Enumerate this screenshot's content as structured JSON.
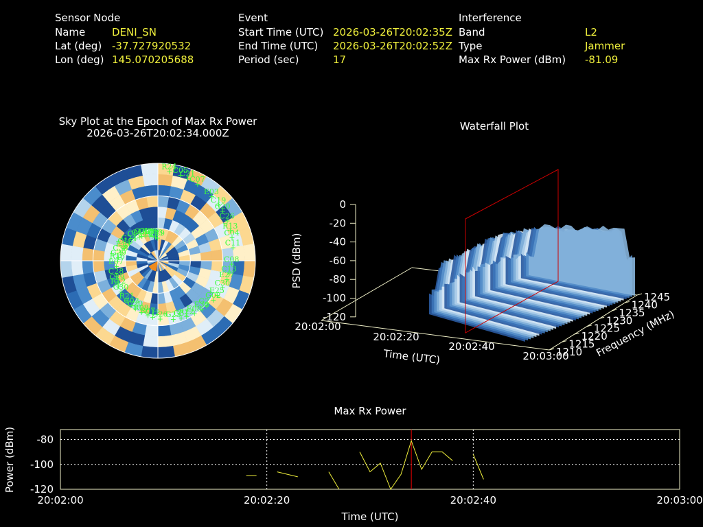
{
  "sensor": {
    "heading": "Sensor Node",
    "name_label": "Name",
    "name_value": "DENI_SN",
    "lat_label": "Lat (deg)",
    "lat_value": "-37.727920532",
    "lon_label": "Lon (deg)",
    "lon_value": "145.070205688"
  },
  "event": {
    "heading": "Event",
    "start_label": "Start Time (UTC)",
    "start_value": "2026-03-26T20:02:35Z",
    "end_label": "End Time (UTC)",
    "end_value": "2026-03-26T20:02:52Z",
    "period_label": "Period (sec)",
    "period_value": "17"
  },
  "interference": {
    "heading": "Interference",
    "band_label": "Band",
    "band_value": "L2",
    "type_label": "Type",
    "type_value": "Jammer",
    "power_label": "Max Rx Power (dBm)",
    "power_value": "-81.09"
  },
  "colors": {
    "label": "#ffffff",
    "value": "#f0f03c",
    "satellite": "#3cff3c",
    "marker": "#cc0000",
    "power_line": "#f0f03c"
  },
  "chart_data": [
    {
      "type": "heatmap",
      "title": "Sky Plot at the Epoch of Max Rx Power",
      "subtitle": "2026-03-26T20:02:34.000Z",
      "satellites": [
        "E19",
        "E30",
        "G29",
        "G20",
        "R07",
        "G32",
        "E27",
        "C29",
        "C21",
        "G31",
        "C15",
        "C04",
        "C03",
        "G09",
        "G02",
        "E07",
        "E03",
        "G26",
        "C05",
        "C08",
        "G30",
        "R24",
        "E08",
        "C38",
        "C26",
        "R08",
        "G18",
        "C30",
        "C28",
        "C07",
        "G23",
        "G24",
        "C11",
        "R21",
        "C13",
        "G2",
        "R16",
        "C19",
        "C12",
        "C48",
        "C13",
        "R12",
        "C05",
        "R22",
        "E13",
        "R13",
        "C20",
        "E26",
        "E25"
      ]
    },
    {
      "type": "area",
      "title": "Waterfall Plot",
      "xlabel": "Time (UTC)",
      "ylabel": "Frequency (MHz)",
      "zlabel": "PSD (dBm)",
      "x_ticks": [
        "20:02:00",
        "20:02:20",
        "20:02:40",
        "20:03:00"
      ],
      "y_ticks": [
        "1210",
        "1215",
        "1220",
        "1225",
        "1230",
        "1235",
        "1240",
        "1245"
      ],
      "z_ticks": [
        "0",
        "-20",
        "-40",
        "-60",
        "-80",
        "-100",
        "-120"
      ],
      "zlim": [
        -120,
        0
      ],
      "peak_time": "20:02:34"
    },
    {
      "type": "line",
      "title": "Max Rx Power",
      "xlabel": "Time (UTC)",
      "ylabel": "Power (dBm)",
      "x_ticks": [
        "20:02:00",
        "20:02:20",
        "20:02:40",
        "20:03:00"
      ],
      "y_ticks": [
        "-80",
        "-100",
        "-120"
      ],
      "ylim": [
        -120,
        -72
      ],
      "marker_time_sec": 34,
      "series": [
        {
          "x": [
            18,
            19
          ],
          "y": [
            -109,
            -109
          ]
        },
        {
          "x": [
            21,
            23
          ],
          "y": [
            -106,
            -110
          ]
        },
        {
          "x": [
            26,
            27
          ],
          "y": [
            -106,
            -120
          ]
        },
        {
          "x": [
            29,
            30,
            31,
            32,
            33,
            34,
            35,
            36,
            37,
            38
          ],
          "y": [
            -90,
            -106,
            -99,
            -120,
            -108,
            -81,
            -104,
            -90,
            -90,
            -97
          ]
        },
        {
          "x": [
            40,
            41
          ],
          "y": [
            -92,
            -112
          ]
        }
      ]
    }
  ]
}
